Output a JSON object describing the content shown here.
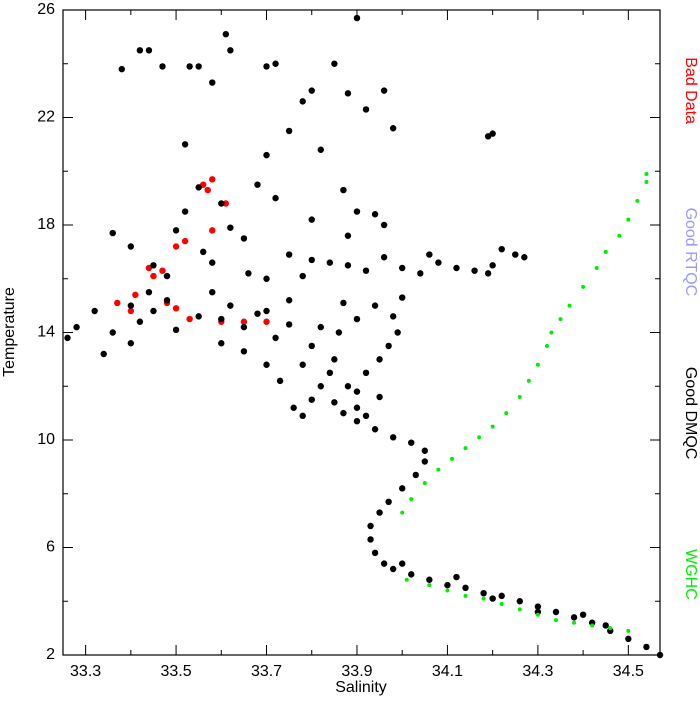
{
  "chart_data": {
    "type": "scatter",
    "x_label": "Salinity",
    "y_label": "Temperature",
    "xlim": [
      33.25,
      34.57
    ],
    "ylim": [
      2,
      26
    ],
    "xticks": [
      33.3,
      33.5,
      33.7,
      33.9,
      34.1,
      34.3,
      34.5
    ],
    "xminor": [
      33.4,
      33.6,
      33.8,
      34.0,
      34.2,
      34.4
    ],
    "yticks": [
      2,
      6,
      10,
      14,
      18,
      22,
      26
    ],
    "yminor": [
      4,
      8,
      12,
      16,
      20,
      24
    ],
    "legend": "right",
    "series": [
      {
        "name": "Bad Data",
        "color": "#ff0000",
        "x": [
          33.37,
          33.4,
          33.41,
          33.44,
          33.45,
          33.47,
          33.5,
          33.52,
          33.57,
          33.58,
          33.56,
          33.5,
          33.53,
          33.6,
          33.65,
          33.7,
          33.58,
          33.61,
          33.48
        ],
        "y": [
          15.1,
          14.8,
          15.4,
          16.4,
          16.1,
          16.3,
          17.2,
          17.4,
          19.3,
          19.7,
          19.5,
          14.9,
          14.5,
          14.4,
          14.4,
          14.4,
          17.8,
          18.8,
          15.1
        ]
      },
      {
        "name": "Good RTQC",
        "color": "#9999ff",
        "x": [],
        "y": []
      },
      {
        "name": "Good DMQC",
        "color": "#000000",
        "x": [
          34.57,
          34.54,
          34.5,
          34.46,
          34.42,
          34.38,
          34.34,
          34.3,
          34.26,
          34.22,
          34.18,
          34.14,
          34.1,
          34.06,
          34.02,
          33.98,
          33.96,
          33.94,
          33.93,
          33.93,
          33.95,
          33.97,
          34.0,
          34.03,
          34.05,
          34.05,
          34.02,
          33.98,
          33.94,
          33.9,
          33.87,
          33.85,
          34.2,
          34.3,
          34.4,
          34.45,
          34.12,
          34.0,
          33.8,
          33.82,
          33.84,
          33.88,
          33.9,
          33.92,
          33.95,
          33.97,
          33.99,
          33.85,
          33.8,
          33.78,
          33.76,
          33.78,
          33.9,
          33.92,
          33.95,
          33.86,
          33.9,
          33.94,
          34.0,
          33.98,
          33.82,
          33.87,
          33.75,
          33.7,
          33.26,
          33.28,
          33.32,
          33.34,
          33.36,
          33.4,
          33.42,
          33.45,
          33.48,
          33.5,
          33.55,
          33.6,
          33.62,
          33.65,
          33.68,
          33.72,
          33.75,
          33.6,
          33.58,
          33.65,
          33.7,
          33.73,
          33.88,
          33.92,
          33.96,
          34.0,
          34.04,
          34.08,
          34.12,
          34.16,
          34.2,
          34.22,
          34.25,
          34.27,
          34.19,
          34.06,
          33.84,
          33.8,
          33.75,
          33.36,
          33.4,
          33.45,
          33.5,
          33.52,
          33.55,
          33.52,
          33.6,
          33.65,
          33.68,
          33.7,
          33.75,
          33.78,
          33.8,
          33.72,
          33.7,
          33.62,
          33.61,
          33.58,
          33.53,
          33.55,
          33.42,
          33.44,
          33.38,
          33.47,
          33.9,
          33.85,
          33.88,
          33.82,
          33.96,
          33.92,
          33.98,
          34.19,
          34.2,
          33.87,
          33.9,
          33.94,
          33.96,
          33.88,
          33.8,
          33.72,
          33.66,
          33.58,
          33.62,
          33.48,
          33.44,
          33.4,
          33.56,
          33.7,
          33.78
        ],
        "y": [
          2.0,
          2.3,
          2.6,
          2.9,
          3.2,
          3.4,
          3.6,
          3.8,
          4.0,
          4.2,
          4.3,
          4.5,
          4.6,
          4.8,
          5.0,
          5.2,
          5.4,
          5.8,
          6.3,
          6.8,
          7.3,
          7.7,
          8.2,
          8.7,
          9.2,
          9.6,
          9.9,
          10.1,
          10.4,
          10.7,
          11.0,
          11.4,
          4.1,
          3.6,
          3.5,
          3.1,
          4.9,
          5.4,
          11.5,
          12.0,
          12.5,
          12.0,
          11.8,
          12.5,
          13.0,
          13.5,
          14.0,
          13.0,
          13.5,
          12.8,
          11.2,
          10.9,
          11.2,
          10.9,
          11.6,
          14.0,
          14.5,
          15.0,
          15.3,
          14.6,
          14.2,
          15.1,
          14.3,
          14.8,
          13.8,
          14.2,
          14.8,
          13.2,
          14.0,
          13.6,
          14.4,
          14.8,
          15.2,
          14.1,
          14.6,
          14.5,
          15.0,
          14.2,
          14.7,
          13.8,
          15.2,
          13.6,
          15.5,
          13.3,
          12.8,
          12.2,
          16.5,
          16.3,
          16.8,
          16.4,
          16.2,
          16.6,
          16.4,
          16.3,
          16.5,
          17.1,
          16.9,
          16.8,
          16.2,
          16.9,
          16.6,
          16.7,
          16.9,
          17.7,
          17.2,
          16.5,
          17.8,
          18.5,
          19.4,
          21.0,
          18.8,
          17.5,
          19.5,
          20.6,
          21.5,
          22.6,
          23.0,
          24.0,
          23.9,
          24.5,
          25.1,
          23.3,
          23.9,
          23.9,
          24.5,
          24.5,
          23.8,
          23.9,
          25.7,
          24.0,
          22.9,
          20.8,
          23.0,
          22.3,
          21.6,
          21.3,
          21.4,
          19.3,
          18.5,
          18.4,
          18.0,
          17.6,
          18.2,
          19.0,
          16.2,
          16.6,
          17.9,
          16.1,
          15.5,
          15.0,
          17.0,
          16.0,
          16.1
        ]
      },
      {
        "name": "WGHC",
        "color": "#00ee00",
        "x": [
          34.01,
          34.06,
          34.1,
          34.14,
          34.18,
          34.22,
          34.26,
          34.3,
          34.34,
          34.38,
          34.42,
          34.46,
          34.5,
          34.0,
          34.02,
          34.05,
          34.08,
          34.11,
          34.14,
          34.17,
          34.2,
          34.23,
          34.26,
          34.28,
          34.3,
          34.32,
          34.33,
          34.35,
          34.37,
          34.4,
          34.43,
          34.45,
          34.48,
          34.5,
          34.52,
          34.54,
          34.54
        ],
        "y": [
          4.8,
          4.6,
          4.4,
          4.2,
          4.1,
          3.9,
          3.7,
          3.5,
          3.3,
          3.2,
          3.1,
          3.0,
          2.9,
          7.3,
          7.8,
          8.4,
          8.9,
          9.3,
          9.7,
          10.1,
          10.5,
          11.0,
          11.6,
          12.2,
          12.8,
          13.5,
          14.0,
          14.5,
          15.0,
          15.7,
          16.4,
          17.0,
          17.6,
          18.2,
          18.9,
          19.6,
          19.9
        ]
      }
    ]
  }
}
